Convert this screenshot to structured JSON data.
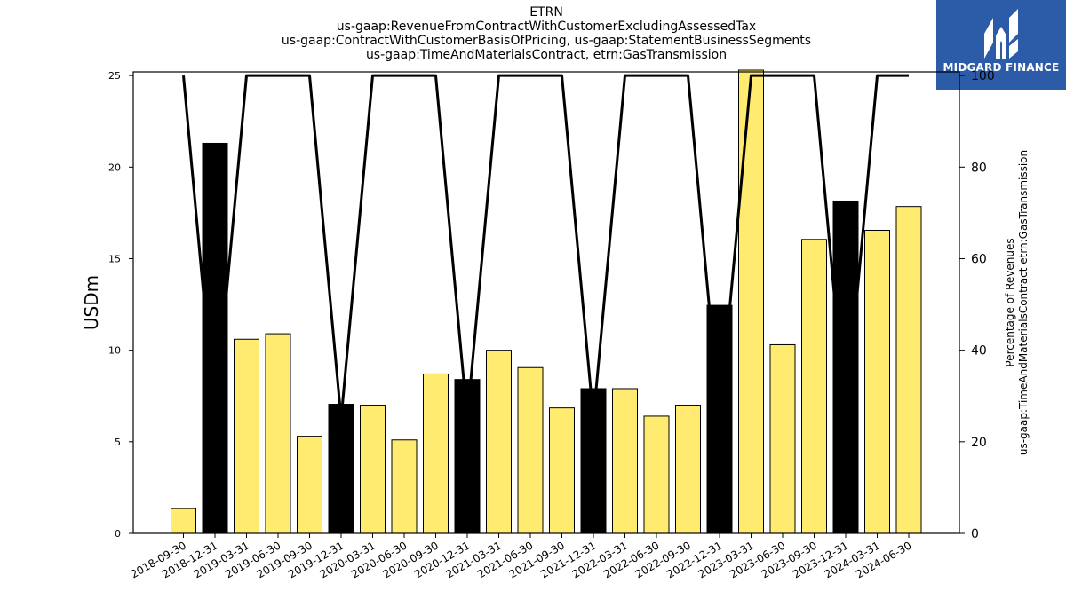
{
  "brand": {
    "name": "MIDGARD FINANCE",
    "logo_icon": "midgard-logo-icon",
    "color": "#2c5ba8"
  },
  "chart_data": {
    "type": "bar",
    "title_lines": [
      "ETRN",
      "us-gaap:RevenueFromContractWithCustomerExcludingAssessedTax",
      "us-gaap:ContractWithCustomerBasisOfPricing, us-gaap:StatementBusinessSegments",
      "us-gaap:TimeAndMaterialsContract, etrn:GasTransmission"
    ],
    "ylabel": "USDm",
    "y2label_lines": [
      "Percentage of Revenues",
      "us-gaap:TimeAndMaterialsContract etrn:GasTransmission"
    ],
    "ylim": [
      0,
      25.2
    ],
    "y2lim": [
      0,
      100.8
    ],
    "yticks": [
      0,
      5,
      10,
      15,
      20,
      25
    ],
    "y2ticks": [
      0,
      20,
      40,
      60,
      80,
      100
    ],
    "categories": [
      "2018-09-30",
      "2018-12-31",
      "2019-03-31",
      "2019-06-30",
      "2019-09-30",
      "2019-12-31",
      "2020-03-31",
      "2020-06-30",
      "2020-09-30",
      "2020-12-31",
      "2021-03-31",
      "2021-06-30",
      "2021-09-30",
      "2021-12-31",
      "2022-03-31",
      "2022-06-30",
      "2022-09-30",
      "2022-12-31",
      "2023-03-31",
      "2023-06-30",
      "2023-09-30",
      "2023-12-31",
      "2024-03-31",
      "2024-06-30"
    ],
    "values": [
      1.35,
      21.3,
      10.6,
      10.9,
      5.3,
      7.05,
      7.0,
      5.1,
      8.7,
      8.4,
      10.0,
      9.05,
      6.85,
      7.9,
      7.9,
      6.4,
      7.0,
      12.45,
      25.5,
      10.3,
      16.05,
      18.15,
      16.55,
      17.85
    ],
    "bar_colors": [
      "#ffeb70",
      "#000000",
      "#ffeb70",
      "#ffeb70",
      "#ffeb70",
      "#000000",
      "#ffeb70",
      "#ffeb70",
      "#ffeb70",
      "#000000",
      "#ffeb70",
      "#ffeb70",
      "#ffeb70",
      "#000000",
      "#ffeb70",
      "#ffeb70",
      "#ffeb70",
      "#000000",
      "#ffeb70",
      "#ffeb70",
      "#ffeb70",
      "#000000",
      "#ffeb70",
      "#ffeb70"
    ],
    "line_values": [
      100,
      25,
      100,
      100,
      100,
      25,
      100,
      100,
      100,
      25,
      100,
      100,
      100,
      25,
      100,
      100,
      100,
      25,
      100,
      100,
      100,
      25,
      100,
      100
    ],
    "line_color": "#000000",
    "grid": false
  }
}
